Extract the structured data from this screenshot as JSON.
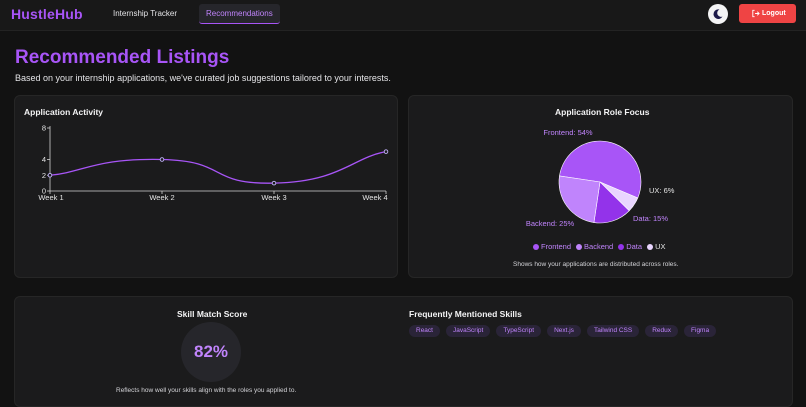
{
  "navbar": {
    "brand": "HustleHub",
    "links": [
      {
        "label": "Internship Tracker",
        "active": false
      },
      {
        "label": "Recommendations",
        "active": true
      }
    ],
    "theme_icon": "moon-icon",
    "logout_label": "Logout",
    "logout_icon": "logout-icon"
  },
  "page": {
    "title": "Recommended Listings",
    "subtitle": "Based on your internship applications, we've curated job suggestions tailored to your interests."
  },
  "activity": {
    "title": "Application Activity"
  },
  "role_focus": {
    "title": "Application Role Focus",
    "caption": "Shows how your applications are distributed across roles."
  },
  "skill_match": {
    "title": "Skill Match Score",
    "score": "82%",
    "caption": "Reflects how well your skills align with the roles you applied to."
  },
  "skills": {
    "title": "Frequently Mentioned Skills",
    "tags": [
      "React",
      "JavaScript",
      "TypeScript",
      "Next.js",
      "Tailwind CSS",
      "Redux",
      "Figma"
    ]
  },
  "colors": {
    "accent": "#a855f7",
    "danger": "#ef4444"
  },
  "chart_data": [
    {
      "type": "line",
      "title": "Application Activity",
      "categories": [
        "Week 1",
        "Week 2",
        "Week 3",
        "Week 4"
      ],
      "values": [
        2,
        4,
        1,
        5
      ],
      "ylim": [
        0,
        8
      ],
      "yticks": [
        0,
        2,
        4,
        8
      ],
      "color": "#a855f7",
      "smooth": true,
      "grid": false
    },
    {
      "type": "pie",
      "title": "Application Role Focus",
      "slices": [
        {
          "name": "Frontend",
          "value": 54,
          "label": "Frontend: 54%",
          "color": "#a855f7"
        },
        {
          "name": "UX",
          "value": 6,
          "label": "UX: 6%",
          "color": "#e9d5ff"
        },
        {
          "name": "Data",
          "value": 15,
          "label": "Data: 15%",
          "color": "#9333ea"
        },
        {
          "name": "Backend",
          "value": 25,
          "label": "Backend: 25%",
          "color": "#c084fc"
        }
      ],
      "legend": "bottom"
    }
  ]
}
